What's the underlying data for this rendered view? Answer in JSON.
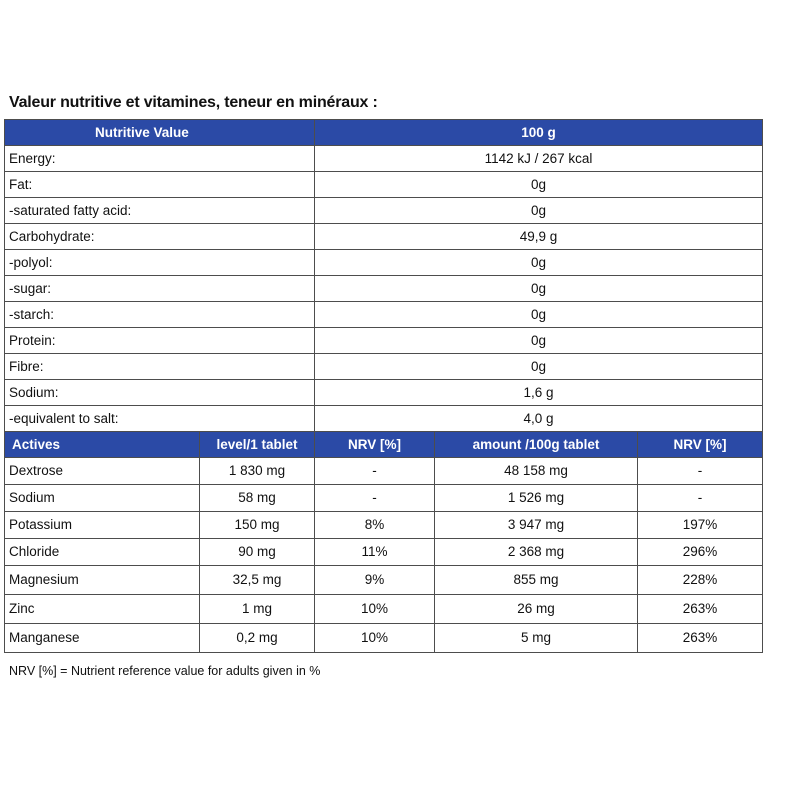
{
  "title": "Valeur nutritive et vitamines, teneur en minéraux :",
  "nutrition": {
    "headers": [
      "Nutritive Value",
      "100 g"
    ],
    "rows": [
      {
        "label": "Energy:",
        "value": "1142 kJ /  267 kcal"
      },
      {
        "label": "Fat:",
        "value": "0g"
      },
      {
        "label": "-saturated fatty acid:",
        "value": "0g"
      },
      {
        "label": "Carbohydrate:",
        "value": "49,9 g"
      },
      {
        "label": "-polyol:",
        "value": "0g"
      },
      {
        "label": "-sugar:",
        "value": "0g"
      },
      {
        "label": "-starch:",
        "value": "0g"
      },
      {
        "label": "Protein:",
        "value": "0g"
      },
      {
        "label": "Fibre:",
        "value": "0g"
      },
      {
        "label": "Sodium:",
        "value": "1,6 g"
      },
      {
        "label": "-equivalent to salt:",
        "value": "4,0 g"
      }
    ]
  },
  "actives": {
    "headers": [
      "Actives",
      "level/1 tablet",
      "NRV [%]",
      "amount /100g tablet",
      "NRV [%]"
    ],
    "rows": [
      {
        "name": "Dextrose",
        "level": "1 830 mg",
        "nrv": "-",
        "amount": "48 158 mg",
        "nrv100": "-"
      },
      {
        "name": "Sodium",
        "level": "58 mg",
        "nrv": "-",
        "amount": "1 526 mg",
        "nrv100": "-"
      },
      {
        "name": "Potassium",
        "level": "150 mg",
        "nrv": "8%",
        "amount": "3 947 mg",
        "nrv100": "197%"
      },
      {
        "name": "Chloride",
        "level": "90 mg",
        "nrv": "11%",
        "amount": "2 368 mg",
        "nrv100": "296%"
      },
      {
        "name": "Magnesium",
        "level": "32,5 mg",
        "nrv": "9%",
        "amount": "855 mg",
        "nrv100": "228%"
      },
      {
        "name": "Zinc",
        "level": "1 mg",
        "nrv": "10%",
        "amount": "26 mg",
        "nrv100": "263%"
      },
      {
        "name": "Manganese",
        "level": "0,2 mg",
        "nrv": "10%",
        "amount": "5 mg",
        "nrv100": "263%"
      }
    ]
  },
  "footnote": "NRV [%] = Nutrient reference value for adults given in %",
  "colors": {
    "header_bg": "#2b4aa6",
    "header_text": "#ffffff",
    "border": "#4d4d4d"
  }
}
